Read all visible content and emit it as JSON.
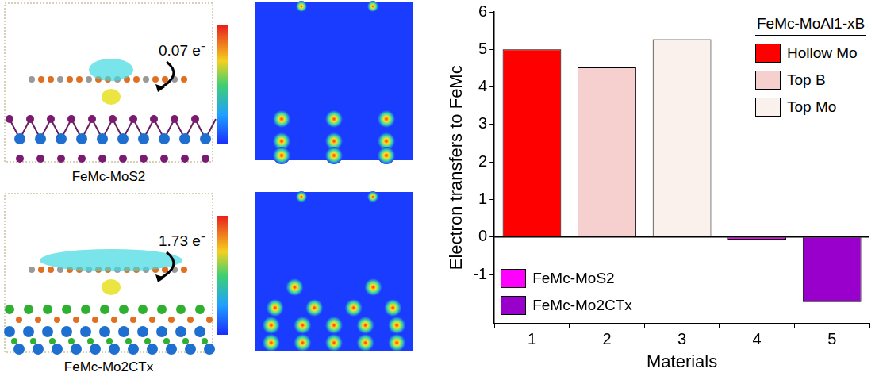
{
  "chart_data": {
    "type": "bar",
    "categories": [
      1,
      2,
      3,
      4,
      5
    ],
    "x_label": "Materials",
    "y_label": "Electron transfers to FeMc",
    "series": [
      {
        "name": "Hollow Mo",
        "color": "#ff0000",
        "values": [
          5.0,
          null,
          null,
          null,
          null
        ]
      },
      {
        "name": "Top B",
        "color": "#f6cfcf",
        "values": [
          null,
          4.52,
          null,
          null,
          null
        ]
      },
      {
        "name": "Top Mo",
        "color": "#fbf1ec",
        "values": [
          null,
          null,
          5.27,
          null,
          null
        ]
      },
      {
        "name": "FeMc-MoS2",
        "color": "#ff00ff",
        "values": [
          null,
          null,
          null,
          -0.07,
          null
        ],
        "legend": "lower left"
      },
      {
        "name": "FeMc-Mo2CTx",
        "color": "#9900cc",
        "values": [
          null,
          null,
          null,
          null,
          -1.73
        ],
        "legend": "lower left"
      }
    ],
    "legend": "upper right",
    "legend_title": "FeMc-MoAl1-xB",
    "ylim": [
      -2.3,
      6
    ],
    "yticks": [
      -1,
      0,
      1,
      2,
      3,
      4,
      5,
      6
    ],
    "grid": false
  },
  "panels": [
    {
      "caption": "FeMc-MoS2",
      "charge": "0.07 e⁻"
    },
    {
      "caption": "FeMc-Mo2CTx",
      "charge": "1.73 e⁻"
    }
  ]
}
